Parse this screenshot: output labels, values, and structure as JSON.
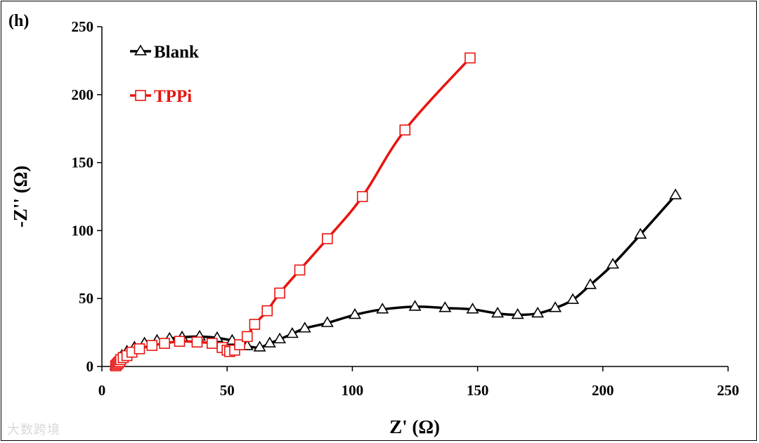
{
  "panel_label": "(h)",
  "watermark": "大数跨境",
  "chart_data": {
    "type": "line",
    "title": "",
    "xlabel": "Z' (Ω)",
    "ylabel": "-Z'' (Ω)",
    "xlim": [
      0,
      250
    ],
    "ylim": [
      0,
      250
    ],
    "xticks": [
      0,
      50,
      100,
      150,
      200,
      250
    ],
    "yticks": [
      0,
      50,
      100,
      150,
      200,
      250
    ],
    "grid": false,
    "legend_position": "top-left",
    "series": [
      {
        "name": "Blank",
        "color": "#000000",
        "marker": "triangle",
        "x": [
          5.5,
          6,
          6.5,
          7,
          8,
          10,
          13,
          17,
          22,
          27,
          32,
          39,
          46,
          52,
          58,
          63,
          67,
          71,
          76,
          81,
          90,
          101,
          112,
          125,
          137,
          148,
          158,
          166,
          174,
          181,
          188,
          195,
          204,
          215,
          229
        ],
        "y": [
          0.5,
          2,
          4,
          6,
          8,
          11,
          14,
          17,
          19,
          20.5,
          21.5,
          22,
          21,
          19,
          15,
          14,
          17,
          20,
          24,
          28,
          32,
          38,
          42,
          44,
          43,
          42,
          39,
          38,
          39,
          43,
          49,
          60,
          75,
          97,
          126
        ]
      },
      {
        "name": "TPPi",
        "color": "#e8140f",
        "marker": "square",
        "x": [
          5.5,
          6,
          6.5,
          7,
          7.5,
          8.5,
          10,
          12,
          15,
          20,
          25,
          31,
          38,
          44,
          48,
          50,
          51,
          53,
          55,
          58,
          61,
          66,
          71,
          79,
          90,
          104,
          121,
          147
        ],
        "y": [
          0.5,
          1.5,
          2.5,
          3.5,
          5,
          6.5,
          8,
          10.5,
          13,
          15.5,
          17,
          18.5,
          18,
          17,
          14,
          12,
          11,
          12,
          16,
          22,
          31,
          41,
          54,
          71,
          94,
          125,
          174,
          227
        ]
      }
    ]
  }
}
